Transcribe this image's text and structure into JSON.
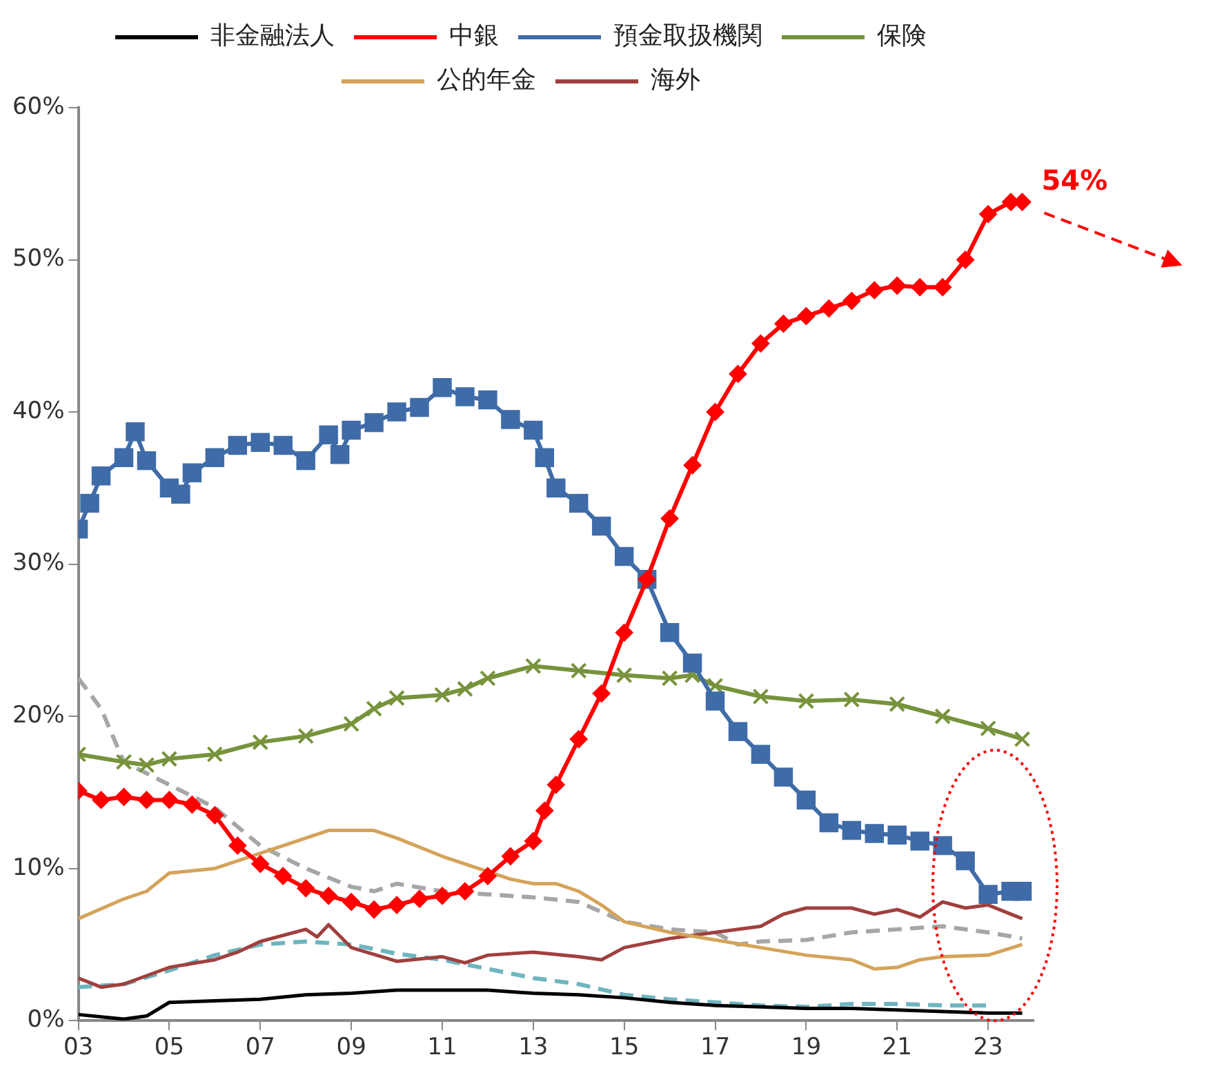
{
  "chart_data": {
    "type": "line",
    "xlim": [
      2003,
      2024
    ],
    "xticks": [
      {
        "value": 2003,
        "label": "03"
      },
      {
        "value": 2005,
        "label": "05"
      },
      {
        "value": 2007,
        "label": "07"
      },
      {
        "value": 2009,
        "label": "09"
      },
      {
        "value": 2011,
        "label": "11"
      },
      {
        "value": 2013,
        "label": "13"
      },
      {
        "value": 2015,
        "label": "15"
      },
      {
        "value": 2017,
        "label": "17"
      },
      {
        "value": 2019,
        "label": "19"
      },
      {
        "value": 2021,
        "label": "21"
      },
      {
        "value": 2023,
        "label": "23"
      }
    ],
    "ylim": [
      0,
      60
    ],
    "yticks": [
      {
        "value": 0,
        "label": "0%"
      },
      {
        "value": 10,
        "label": "10%"
      },
      {
        "value": 20,
        "label": "20%"
      },
      {
        "value": 30,
        "label": "30%"
      },
      {
        "value": 40,
        "label": "40%"
      },
      {
        "value": 50,
        "label": "50%"
      },
      {
        "value": 60,
        "label": "60%"
      }
    ],
    "grid": false,
    "legend": "top",
    "annotations": [
      {
        "text": "54%",
        "x": 2023.75,
        "y": 53.8
      }
    ],
    "series": [
      {
        "name": "非金融法人",
        "color": "#000000",
        "marker": "none",
        "x": [
          2003,
          2004,
          2004.5,
          2005,
          2006,
          2007,
          2008,
          2009,
          2010,
          2011,
          2012,
          2013,
          2014,
          2015,
          2016,
          2017,
          2018,
          2019,
          2020,
          2021,
          2022,
          2023,
          2023.75
        ],
        "values": [
          0.4,
          0.1,
          0.3,
          1.2,
          1.3,
          1.4,
          1.7,
          1.8,
          2.0,
          2.0,
          2.0,
          1.8,
          1.7,
          1.5,
          1.2,
          1.0,
          0.9,
          0.8,
          0.8,
          0.7,
          0.6,
          0.5,
          0.5
        ]
      },
      {
        "name": "中銀",
        "color": "#ff0000",
        "marker": "diamond",
        "x": [
          2003,
          2003.5,
          2004,
          2004.5,
          2005,
          2005.5,
          2006,
          2006.5,
          2007,
          2007.5,
          2008,
          2008.5,
          2009,
          2009.5,
          2010,
          2010.5,
          2011,
          2011.5,
          2012,
          2012.5,
          2013,
          2013.25,
          2013.5,
          2014,
          2014.5,
          2015,
          2015.5,
          2016,
          2016.5,
          2017,
          2017.5,
          2018,
          2018.5,
          2019,
          2019.5,
          2020,
          2020.5,
          2021,
          2021.5,
          2022,
          2022.5,
          2023,
          2023.5,
          2023.75
        ],
        "values": [
          15.1,
          14.5,
          14.7,
          14.5,
          14.5,
          14.2,
          13.5,
          11.5,
          10.3,
          9.5,
          8.7,
          8.2,
          7.8,
          7.3,
          7.6,
          8.0,
          8.2,
          8.5,
          9.5,
          10.8,
          11.8,
          13.8,
          15.5,
          18.5,
          21.5,
          25.5,
          29.0,
          33.0,
          36.5,
          40.0,
          42.5,
          44.5,
          45.8,
          46.3,
          46.8,
          47.3,
          48.0,
          48.3,
          48.2,
          48.2,
          50.0,
          53.0,
          53.8,
          53.8
        ]
      },
      {
        "name": "預金取扱機関",
        "color": "#3f6ca8",
        "marker": "square",
        "x": [
          2003,
          2003.25,
          2003.5,
          2004,
          2004.25,
          2004.5,
          2005,
          2005.25,
          2005.5,
          2006,
          2006.5,
          2007,
          2007.5,
          2008,
          2008.5,
          2008.75,
          2009,
          2009.5,
          2010,
          2010.5,
          2011,
          2011.5,
          2012,
          2012.5,
          2013,
          2013.25,
          2013.5,
          2014,
          2014.5,
          2015,
          2015.5,
          2016,
          2016.5,
          2017,
          2017.5,
          2018,
          2018.5,
          2019,
          2019.5,
          2020,
          2020.5,
          2021,
          2021.5,
          2022,
          2022.5,
          2023,
          2023.5,
          2023.75
        ],
        "values": [
          32.3,
          34.0,
          35.8,
          37.0,
          38.7,
          36.8,
          35.0,
          34.6,
          36.0,
          37.0,
          37.8,
          38.0,
          37.8,
          36.8,
          38.5,
          37.2,
          38.8,
          39.3,
          40.0,
          40.3,
          41.6,
          41.0,
          40.8,
          39.5,
          38.8,
          37.0,
          35.0,
          34.0,
          32.5,
          30.5,
          29.0,
          25.5,
          23.5,
          21.0,
          19.0,
          17.5,
          16.0,
          14.5,
          13.0,
          12.5,
          12.3,
          12.2,
          11.8,
          11.5,
          10.5,
          8.3,
          8.5,
          8.5
        ]
      },
      {
        "name": "保険",
        "color": "#77933c",
        "marker": "cross",
        "x": [
          2003,
          2004,
          2004.5,
          2005,
          2006,
          2007,
          2008,
          2009,
          2009.5,
          2010,
          2011,
          2011.5,
          2012,
          2013,
          2014,
          2015,
          2016,
          2016.5,
          2017,
          2018,
          2019,
          2020,
          2021,
          2022,
          2023,
          2023.75
        ],
        "values": [
          17.5,
          17.0,
          16.8,
          17.2,
          17.5,
          18.3,
          18.7,
          19.5,
          20.5,
          21.2,
          21.4,
          21.8,
          22.5,
          23.3,
          23.0,
          22.7,
          22.5,
          22.7,
          22.0,
          21.3,
          21.0,
          21.1,
          20.8,
          20.0,
          19.2,
          18.5
        ]
      },
      {
        "name": "公的年金",
        "color": "#d4a35a",
        "marker": "none",
        "x": [
          2003,
          2004,
          2004.5,
          2005,
          2006,
          2007,
          2008,
          2008.5,
          2009.5,
          2010,
          2011,
          2012,
          2012.5,
          2013,
          2013.5,
          2014,
          2014.5,
          2015,
          2016,
          2017,
          2018,
          2019,
          2020,
          2020.5,
          2021,
          2021.5,
          2022,
          2023,
          2023.75
        ],
        "values": [
          6.7,
          8.0,
          8.5,
          9.7,
          10.0,
          11.0,
          12.0,
          12.5,
          12.5,
          12.0,
          10.8,
          9.8,
          9.3,
          9.0,
          9.0,
          8.5,
          7.6,
          6.5,
          5.8,
          5.3,
          4.8,
          4.3,
          4.0,
          3.4,
          3.5,
          4.0,
          4.2,
          4.3,
          5.0
        ]
      },
      {
        "name": "海外",
        "color": "#a0403e",
        "marker": "none",
        "x": [
          2003,
          2003.5,
          2004,
          2005,
          2006,
          2006.5,
          2007,
          2008,
          2008.25,
          2008.5,
          2009,
          2010,
          2011,
          2011.5,
          2012,
          2013,
          2014,
          2014.5,
          2015,
          2016,
          2017,
          2018,
          2018.5,
          2019,
          2020,
          2020.5,
          2021,
          2021.5,
          2022,
          2022.5,
          2023,
          2023.5,
          2023.75
        ],
        "values": [
          2.8,
          2.2,
          2.4,
          3.5,
          4.0,
          4.5,
          5.2,
          6.0,
          5.5,
          6.3,
          4.8,
          3.9,
          4.2,
          3.8,
          4.3,
          4.5,
          4.2,
          4.0,
          4.8,
          5.4,
          5.8,
          6.2,
          7.0,
          7.4,
          7.4,
          7.0,
          7.3,
          6.8,
          7.8,
          7.4,
          7.6,
          7.0,
          6.7
        ]
      },
      {
        "color": "#a6a6a6",
        "marker": "none",
        "line_style": "dashed",
        "x": [
          2003,
          2003.5,
          2004,
          2005,
          2006,
          2007,
          2008,
          2009,
          2009.5,
          2010,
          2011,
          2012,
          2013,
          2014,
          2015,
          2016,
          2017,
          2017.5,
          2018,
          2019,
          2020,
          2021,
          2022,
          2023,
          2023.75
        ],
        "values": [
          22.5,
          20.5,
          17.0,
          15.5,
          14.0,
          11.5,
          10.0,
          8.8,
          8.5,
          9.0,
          8.5,
          8.3,
          8.1,
          7.8,
          6.5,
          6.0,
          5.8,
          5.0,
          5.2,
          5.3,
          5.8,
          6.0,
          6.2,
          5.8,
          5.4
        ]
      },
      {
        "color": "#6eb5bf",
        "marker": "none",
        "line_style": "dashed",
        "x": [
          2003,
          2004,
          2005,
          2006,
          2007,
          2008,
          2009,
          2010,
          2011,
          2012,
          2013,
          2014,
          2015,
          2016,
          2017,
          2018,
          2019,
          2020,
          2021,
          2022,
          2023
        ],
        "values": [
          2.2,
          2.4,
          3.3,
          4.3,
          5.0,
          5.2,
          5.0,
          4.4,
          4.0,
          3.4,
          2.8,
          2.4,
          1.7,
          1.4,
          1.2,
          1.0,
          0.9,
          1.1,
          1.1,
          1.0,
          1.0
        ]
      }
    ]
  }
}
